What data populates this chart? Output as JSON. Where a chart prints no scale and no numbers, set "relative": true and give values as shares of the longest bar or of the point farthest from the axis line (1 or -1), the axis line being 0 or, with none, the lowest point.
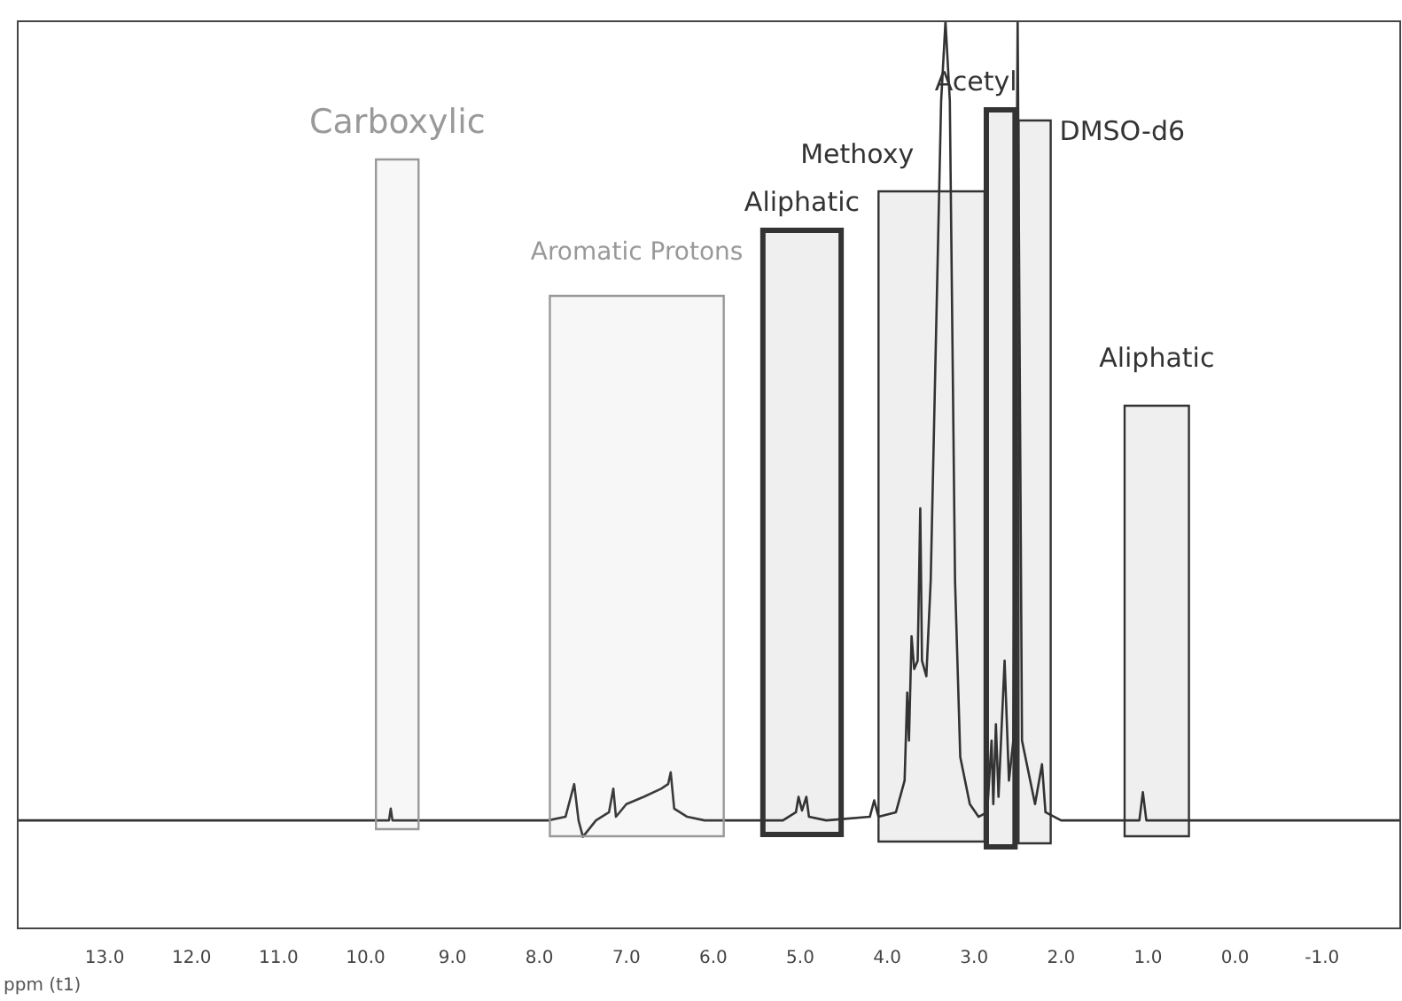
{
  "chart_data": {
    "type": "line",
    "relative": true,
    "xlabel": "ppm (t1)",
    "xlim": [
      14.0,
      -1.9
    ],
    "xticks": [
      {
        "value": 13,
        "label": "13.0"
      },
      {
        "value": 12,
        "label": "12.0"
      },
      {
        "value": 11,
        "label": "11.0"
      },
      {
        "value": 10,
        "label": "10.0"
      },
      {
        "value": 9,
        "label": "9.0"
      },
      {
        "value": 8,
        "label": "8.0"
      },
      {
        "value": 7,
        "label": "7.0"
      },
      {
        "value": 6,
        "label": "6.0"
      },
      {
        "value": 5,
        "label": "5.0"
      },
      {
        "value": 4,
        "label": "4.0"
      },
      {
        "value": 3,
        "label": "3.0"
      },
      {
        "value": 2,
        "label": "2.0"
      },
      {
        "value": 1,
        "label": "1.0"
      },
      {
        "value": 0,
        "label": "0.0"
      },
      {
        "value": -1,
        "label": "-1.0"
      }
    ],
    "grid": false,
    "legend": false,
    "tick_labels": "x",
    "series": [
      {
        "color": "#333333",
        "x": [
          14.0,
          10.0,
          9.73,
          9.71,
          9.69,
          7.9,
          7.7,
          7.6,
          7.55,
          7.5,
          7.35,
          7.2,
          7.15,
          7.12,
          7.0,
          6.8,
          6.6,
          6.52,
          6.49,
          6.45,
          6.3,
          6.1,
          5.2,
          5.05,
          5.02,
          4.98,
          4.93,
          4.9,
          4.7,
          4.2,
          4.15,
          4.1,
          3.9,
          3.8,
          3.77,
          3.75,
          3.72,
          3.69,
          3.65,
          3.62,
          3.6,
          3.55,
          3.5,
          3.45,
          3.38,
          3.33,
          3.28,
          3.22,
          3.16,
          3.05,
          2.95,
          2.85,
          2.8,
          2.78,
          2.75,
          2.72,
          2.65,
          2.6,
          2.55,
          2.5,
          2.45,
          2.3,
          2.22,
          2.18,
          2.0,
          1.1,
          1.06,
          1.02,
          0,
          -1.9
        ],
        "values": [
          0.119,
          0.119,
          0.119,
          0.132,
          0.119,
          0.119,
          0.123,
          0.159,
          0.119,
          0.101,
          0.119,
          0.128,
          0.154,
          0.123,
          0.137,
          0.145,
          0.154,
          0.159,
          0.172,
          0.132,
          0.123,
          0.119,
          0.119,
          0.128,
          0.145,
          0.13,
          0.145,
          0.123,
          0.119,
          0.123,
          0.141,
          0.123,
          0.128,
          0.163,
          0.26,
          0.207,
          0.322,
          0.286,
          0.295,
          0.463,
          0.295,
          0.278,
          0.383,
          0.604,
          0.912,
          1,
          0.912,
          0.383,
          0.189,
          0.137,
          0.123,
          0.128,
          0.207,
          0.137,
          0.225,
          0.145,
          0.295,
          0.163,
          0.207,
          1,
          0.207,
          0.137,
          0.181,
          0.128,
          0.119,
          0.119,
          0.15,
          0.119,
          0.119,
          0.119
        ]
      }
    ],
    "bands": [
      {
        "axis": "x",
        "from": 9.88,
        "to": 9.39,
        "label": "Carboxylic",
        "color": "#999999"
      },
      {
        "axis": "x",
        "from": 7.88,
        "to": 5.88,
        "label": "Aromatic Protons",
        "color": "#999999"
      },
      {
        "axis": "x",
        "from": 5.43,
        "to": 4.53,
        "label": "Aliphatic",
        "color": "#333333"
      },
      {
        "axis": "x",
        "from": 4.1,
        "to": 2.88,
        "label": "Methoxy",
        "color": "#333333"
      },
      {
        "axis": "x",
        "from": 2.86,
        "to": 2.53,
        "label": "Acetyl",
        "color": "#333333"
      },
      {
        "axis": "x",
        "from": 2.49,
        "to": 2.12,
        "label": "DMSO-d6",
        "color": "#333333"
      },
      {
        "axis": "x",
        "from": 1.27,
        "to": 0.53,
        "label": "Aliphatic",
        "color": "#333333"
      }
    ]
  }
}
